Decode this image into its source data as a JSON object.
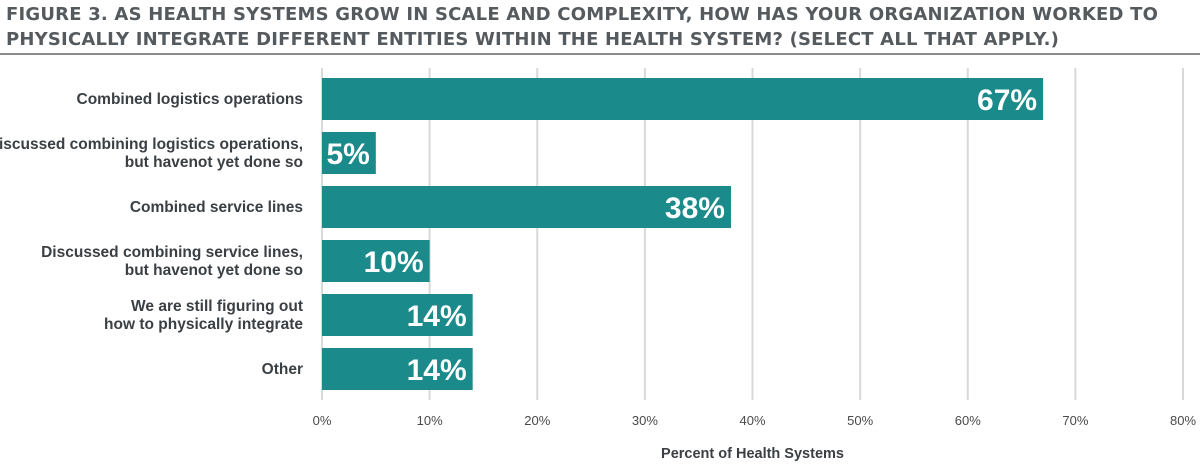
{
  "title": {
    "line1": "FIGURE 3. AS HEALTH SYSTEMS GROW IN SCALE AND COMPLEXITY, HOW HAS YOUR ORGANIZATION WORKED TO",
    "line2": "PHYSICALLY INTEGRATE DIFFERENT ENTITIES WITHIN THE HEALTH SYSTEM? (SELECT ALL THAT APPLY.)"
  },
  "colors": {
    "bar": "#1a8a8a",
    "grid": "#d9d9d9",
    "title": "#555a5e",
    "text": "#3a3f44"
  },
  "chart_data": {
    "type": "bar",
    "orientation": "horizontal",
    "categories": [
      [
        "Combined logistics operations"
      ],
      [
        "Discussed combining logistics operations,",
        "but havenot yet done so"
      ],
      [
        "Combined service lines"
      ],
      [
        "Discussed combining service lines,",
        "but havenot yet done so"
      ],
      [
        "We are still figuring out",
        "how to physically integrate"
      ],
      [
        "Other"
      ]
    ],
    "values": [
      67,
      5,
      38,
      10,
      14,
      14
    ],
    "value_labels": [
      "67%",
      "5%",
      "38%",
      "10%",
      "14%",
      "14%"
    ],
    "xlim": [
      0,
      80
    ],
    "ticks": [
      "0%",
      "10%",
      "20%",
      "30%",
      "40%",
      "50%",
      "60%",
      "70%",
      "80%"
    ],
    "xlabel": "Percent of Health Systems",
    "ylabel": "",
    "grid": true,
    "legend": "none"
  }
}
